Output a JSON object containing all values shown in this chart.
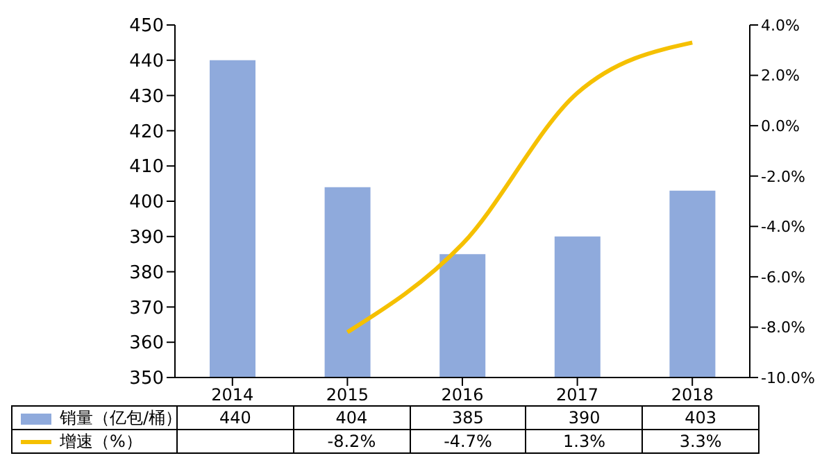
{
  "chart_data": {
    "type": "bar",
    "categories": [
      "2014",
      "2015",
      "2016",
      "2017",
      "2018"
    ],
    "series": [
      {
        "name": "销量（亿包/桶）",
        "color": "#8faadc",
        "values": [
          440,
          404,
          385,
          390,
          403
        ],
        "value_labels": [
          "440",
          "404",
          "385",
          "390",
          "403"
        ]
      },
      {
        "name": "增速（%）",
        "type": "line",
        "axis": "y2",
        "color": "#f5c000",
        "values": [
          null,
          -8.2,
          -4.7,
          1.3,
          3.3
        ],
        "value_labels": [
          null,
          "-8.2%",
          "-4.7%",
          "1.3%",
          "3.3%"
        ]
      }
    ],
    "ylim": [
      350,
      450
    ],
    "yticks": [
      350,
      360,
      370,
      380,
      390,
      400,
      410,
      420,
      430,
      440,
      450
    ],
    "y2lim": [
      -10,
      4
    ],
    "y2ticks": [
      {
        "value": -10,
        "label": "-10.0%"
      },
      {
        "value": -8,
        "label": "-8.0%"
      },
      {
        "value": -6,
        "label": "-6.0%"
      },
      {
        "value": -4,
        "label": "-4.0%"
      },
      {
        "value": -2,
        "label": "-2.0%"
      },
      {
        "value": 0,
        "label": "0.0%"
      },
      {
        "value": 2,
        "label": "2.0%"
      },
      {
        "value": 4,
        "label": "4.0%"
      }
    ],
    "legend": "bottom left",
    "marker": "none",
    "line_style": "solid"
  }
}
